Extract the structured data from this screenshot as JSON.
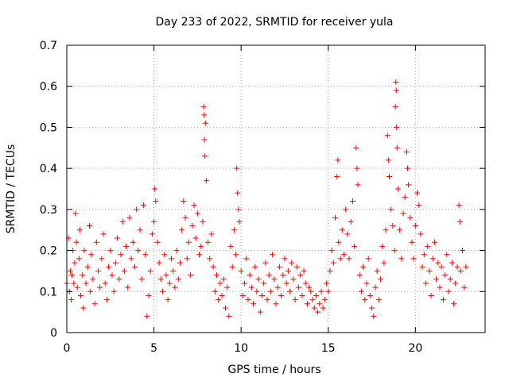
{
  "chart_data": {
    "type": "scatter",
    "title": "Day 233 of 2022, SRMTID for receiver yula",
    "xlabel": "GPS time / hours",
    "ylabel": "SRMTID / TECUs",
    "xlim": [
      0,
      24
    ],
    "ylim": [
      0,
      0.7
    ],
    "xticks": [
      0,
      5,
      10,
      15,
      20
    ],
    "xtick_labels": [
      "0",
      "5",
      "10",
      "15",
      "20"
    ],
    "yticks": [
      0,
      0.1,
      0.2,
      0.3,
      0.4,
      0.5,
      0.6,
      0.7
    ],
    "ytick_labels": [
      "0",
      "0.1",
      "0.2",
      "0.3",
      "0.4",
      "0.5",
      "0.6",
      "0.7"
    ],
    "grid": true,
    "marker": "+",
    "marker_color": "#ff0000",
    "series": [
      {
        "name": "SRMTID",
        "points": [
          [
            0.0,
            0.12
          ],
          [
            0.1,
            0.23
          ],
          [
            0.15,
            0.1
          ],
          [
            0.2,
            0.15
          ],
          [
            0.25,
            0.08
          ],
          [
            0.3,
            0.14
          ],
          [
            0.35,
            0.2
          ],
          [
            0.4,
            0.12
          ],
          [
            0.45,
            0.17
          ],
          [
            0.5,
            0.29
          ],
          [
            0.55,
            0.22
          ],
          [
            0.6,
            0.11
          ],
          [
            0.7,
            0.18
          ],
          [
            0.75,
            0.25
          ],
          [
            0.8,
            0.09
          ],
          [
            0.9,
            0.14
          ],
          [
            0.95,
            0.06
          ],
          [
            1.0,
            0.2
          ],
          [
            1.1,
            0.12
          ],
          [
            1.2,
            0.16
          ],
          [
            1.3,
            0.26
          ],
          [
            1.35,
            0.1
          ],
          [
            1.4,
            0.19
          ],
          [
            1.5,
            0.13
          ],
          [
            1.6,
            0.07
          ],
          [
            1.7,
            0.22
          ],
          [
            1.8,
            0.15
          ],
          [
            1.9,
            0.11
          ],
          [
            2.0,
            0.18
          ],
          [
            2.1,
            0.24
          ],
          [
            2.2,
            0.12
          ],
          [
            2.3,
            0.08
          ],
          [
            2.4,
            0.16
          ],
          [
            2.5,
            0.2
          ],
          [
            2.6,
            0.14
          ],
          [
            2.7,
            0.1
          ],
          [
            2.8,
            0.17
          ],
          [
            2.9,
            0.23
          ],
          [
            3.0,
            0.13
          ],
          [
            3.1,
            0.19
          ],
          [
            3.2,
            0.27
          ],
          [
            3.3,
            0.15
          ],
          [
            3.4,
            0.21
          ],
          [
            3.5,
            0.11
          ],
          [
            3.6,
            0.28
          ],
          [
            3.7,
            0.18
          ],
          [
            3.8,
            0.22
          ],
          [
            3.9,
            0.16
          ],
          [
            4.0,
            0.3
          ],
          [
            4.1,
            0.2
          ],
          [
            4.2,
            0.25
          ],
          [
            4.3,
            0.13
          ],
          [
            4.4,
            0.31
          ],
          [
            4.5,
            0.19
          ],
          [
            4.6,
            0.04
          ],
          [
            4.7,
            0.09
          ],
          [
            4.8,
            0.15
          ],
          [
            4.9,
            0.24
          ],
          [
            5.0,
            0.27
          ],
          [
            5.05,
            0.35
          ],
          [
            5.1,
            0.32
          ],
          [
            5.2,
            0.22
          ],
          [
            5.3,
            0.17
          ],
          [
            5.4,
            0.13
          ],
          [
            5.5,
            0.1
          ],
          [
            5.6,
            0.19
          ],
          [
            5.7,
            0.14
          ],
          [
            5.8,
            0.08
          ],
          [
            5.9,
            0.12
          ],
          [
            6.0,
            0.18
          ],
          [
            6.1,
            0.15
          ],
          [
            6.2,
            0.11
          ],
          [
            6.3,
            0.2
          ],
          [
            6.4,
            0.13
          ],
          [
            6.5,
            0.17
          ],
          [
            6.6,
            0.25
          ],
          [
            6.7,
            0.32
          ],
          [
            6.8,
            0.28
          ],
          [
            6.9,
            0.18
          ],
          [
            7.0,
            0.22
          ],
          [
            7.1,
            0.14
          ],
          [
            7.2,
            0.26
          ],
          [
            7.3,
            0.31
          ],
          [
            7.4,
            0.23
          ],
          [
            7.5,
            0.29
          ],
          [
            7.6,
            0.19
          ],
          [
            7.7,
            0.21
          ],
          [
            7.8,
            0.27
          ],
          [
            7.85,
            0.55
          ],
          [
            7.88,
            0.53
          ],
          [
            7.9,
            0.47
          ],
          [
            7.92,
            0.43
          ],
          [
            7.95,
            0.51
          ],
          [
            8.0,
            0.37
          ],
          [
            8.1,
            0.22
          ],
          [
            8.2,
            0.18
          ],
          [
            8.3,
            0.24
          ],
          [
            8.4,
            0.16
          ],
          [
            8.5,
            0.1
          ],
          [
            8.6,
            0.14
          ],
          [
            8.7,
            0.08
          ],
          [
            8.8,
            0.12
          ],
          [
            8.9,
            0.09
          ],
          [
            9.0,
            0.13
          ],
          [
            9.1,
            0.06
          ],
          [
            9.2,
            0.11
          ],
          [
            9.3,
            0.04
          ],
          [
            9.4,
            0.21
          ],
          [
            9.5,
            0.16
          ],
          [
            9.6,
            0.25
          ],
          [
            9.7,
            0.19
          ],
          [
            9.75,
            0.4
          ],
          [
            9.8,
            0.34
          ],
          [
            9.85,
            0.3
          ],
          [
            9.9,
            0.27
          ],
          [
            10.0,
            0.15
          ],
          [
            10.1,
            0.09
          ],
          [
            10.2,
            0.12
          ],
          [
            10.3,
            0.18
          ],
          [
            10.4,
            0.08
          ],
          [
            10.5,
            0.14
          ],
          [
            10.6,
            0.11
          ],
          [
            10.7,
            0.07
          ],
          [
            10.8,
            0.16
          ],
          [
            10.9,
            0.1
          ],
          [
            11.0,
            0.13
          ],
          [
            11.1,
            0.05
          ],
          [
            11.2,
            0.09
          ],
          [
            11.3,
            0.12
          ],
          [
            11.4,
            0.17
          ],
          [
            11.5,
            0.08
          ],
          [
            11.6,
            0.14
          ],
          [
            11.7,
            0.1
          ],
          [
            11.8,
            0.19
          ],
          [
            11.9,
            0.13
          ],
          [
            12.0,
            0.07
          ],
          [
            12.1,
            0.11
          ],
          [
            12.2,
            0.16
          ],
          [
            12.3,
            0.09
          ],
          [
            12.4,
            0.14
          ],
          [
            12.5,
            0.18
          ],
          [
            12.6,
            0.12
          ],
          [
            12.7,
            0.15
          ],
          [
            12.8,
            0.1
          ],
          [
            12.9,
            0.17
          ],
          [
            13.0,
            0.13
          ],
          [
            13.1,
            0.08
          ],
          [
            13.2,
            0.16
          ],
          [
            13.3,
            0.11
          ],
          [
            13.4,
            0.14
          ],
          [
            13.5,
            0.09
          ],
          [
            13.6,
            0.15
          ],
          [
            13.7,
            0.12
          ],
          [
            13.8,
            0.07
          ],
          [
            13.9,
            0.11
          ],
          [
            14.0,
            0.1
          ],
          [
            14.1,
            0.08
          ],
          [
            14.2,
            0.06
          ],
          [
            14.3,
            0.09
          ],
          [
            14.4,
            0.05
          ],
          [
            14.5,
            0.07
          ],
          [
            14.6,
            0.1
          ],
          [
            14.7,
            0.06
          ],
          [
            14.8,
            0.08
          ],
          [
            14.9,
            0.12
          ],
          [
            15.0,
            0.1
          ],
          [
            15.1,
            0.15
          ],
          [
            15.2,
            0.2
          ],
          [
            15.3,
            0.17
          ],
          [
            15.4,
            0.28
          ],
          [
            15.5,
            0.38
          ],
          [
            15.55,
            0.42
          ],
          [
            15.6,
            0.22
          ],
          [
            15.7,
            0.18
          ],
          [
            15.8,
            0.25
          ],
          [
            15.9,
            0.19
          ],
          [
            16.0,
            0.3
          ],
          [
            16.1,
            0.24
          ],
          [
            16.2,
            0.18
          ],
          [
            16.3,
            0.27
          ],
          [
            16.4,
            0.32
          ],
          [
            16.5,
            0.21
          ],
          [
            16.6,
            0.45
          ],
          [
            16.65,
            0.4
          ],
          [
            16.7,
            0.36
          ],
          [
            16.8,
            0.14
          ],
          [
            16.9,
            0.1
          ],
          [
            17.0,
            0.16
          ],
          [
            17.1,
            0.08
          ],
          [
            17.2,
            0.12
          ],
          [
            17.3,
            0.18
          ],
          [
            17.4,
            0.09
          ],
          [
            17.5,
            0.06
          ],
          [
            17.6,
            0.04
          ],
          [
            17.7,
            0.11
          ],
          [
            17.8,
            0.15
          ],
          [
            17.9,
            0.08
          ],
          [
            18.0,
            0.13
          ],
          [
            18.1,
            0.21
          ],
          [
            18.2,
            0.17
          ],
          [
            18.3,
            0.25
          ],
          [
            18.4,
            0.48
          ],
          [
            18.45,
            0.42
          ],
          [
            18.5,
            0.38
          ],
          [
            18.6,
            0.3
          ],
          [
            18.7,
            0.26
          ],
          [
            18.8,
            0.2
          ],
          [
            18.85,
            0.55
          ],
          [
            18.88,
            0.61
          ],
          [
            18.9,
            0.59
          ],
          [
            18.92,
            0.5
          ],
          [
            18.95,
            0.45
          ],
          [
            19.0,
            0.35
          ],
          [
            19.1,
            0.25
          ],
          [
            19.2,
            0.18
          ],
          [
            19.3,
            0.29
          ],
          [
            19.4,
            0.33
          ],
          [
            19.5,
            0.44
          ],
          [
            19.55,
            0.4
          ],
          [
            19.6,
            0.36
          ],
          [
            19.7,
            0.28
          ],
          [
            19.8,
            0.22
          ],
          [
            19.9,
            0.18
          ],
          [
            20.0,
            0.26
          ],
          [
            20.1,
            0.34
          ],
          [
            20.2,
            0.31
          ],
          [
            20.3,
            0.24
          ],
          [
            20.4,
            0.16
          ],
          [
            20.5,
            0.19
          ],
          [
            20.6,
            0.12
          ],
          [
            20.7,
            0.21
          ],
          [
            20.8,
            0.15
          ],
          [
            20.9,
            0.09
          ],
          [
            21.0,
            0.18
          ],
          [
            21.1,
            0.22
          ],
          [
            21.2,
            0.13
          ],
          [
            21.3,
            0.17
          ],
          [
            21.4,
            0.11
          ],
          [
            21.5,
            0.16
          ],
          [
            21.6,
            0.08
          ],
          [
            21.7,
            0.14
          ],
          [
            21.8,
            0.19
          ],
          [
            21.9,
            0.1
          ],
          [
            22.0,
            0.13
          ],
          [
            22.1,
            0.17
          ],
          [
            22.2,
            0.07
          ],
          [
            22.3,
            0.12
          ],
          [
            22.4,
            0.16
          ],
          [
            22.5,
            0.31
          ],
          [
            22.55,
            0.27
          ],
          [
            22.6,
            0.15
          ],
          [
            22.7,
            0.2
          ],
          [
            22.8,
            0.11
          ],
          [
            22.9,
            0.16
          ]
        ]
      }
    ]
  }
}
